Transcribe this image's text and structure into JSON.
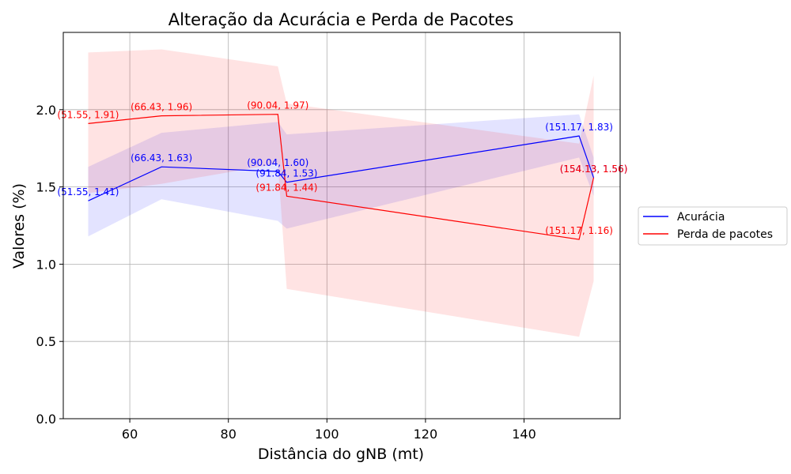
{
  "chart_data": {
    "type": "line",
    "title": "Alteração da Acurácia e Perda de Pacotes",
    "xlabel": "Distância do gNB (mt)",
    "ylabel": "Valores (%)",
    "xlim": [
      46.5,
      159.5
    ],
    "ylim": [
      0,
      2.5
    ],
    "xticks": [
      "60",
      "80",
      "100",
      "120",
      "140"
    ],
    "xtick_values": [
      60,
      80,
      100,
      120,
      140
    ],
    "yticks": [
      "0.0",
      "0.5",
      "1.0",
      "1.5",
      "2.0"
    ],
    "ytick_values": [
      0,
      0.5,
      1.0,
      1.5,
      2.0
    ],
    "grid": true,
    "legend_position": "outside-right",
    "series": [
      {
        "name": "Acurácia",
        "color": "#0000ff",
        "fill_color": "#0000ff",
        "x": [
          51.55,
          66.43,
          90.04,
          91.84,
          151.17,
          154.13
        ],
        "y": [
          1.41,
          1.63,
          1.6,
          1.53,
          1.83,
          1.56
        ],
        "band_upper": [
          1.63,
          1.85,
          1.92,
          1.84,
          1.97,
          1.69
        ],
        "band_lower": [
          1.18,
          1.42,
          1.28,
          1.23,
          1.69,
          1.44
        ],
        "labels": [
          "(51.55, 1.41)",
          "(66.43, 1.63)",
          "(90.04, 1.60)",
          "(91.84, 1.53)",
          "(151.17, 1.83)",
          "(154.13, 1.56)"
        ]
      },
      {
        "name": "Perda de pacotes",
        "color": "#ff0000",
        "fill_color": "#ff0000",
        "x": [
          51.55,
          66.43,
          90.04,
          91.84,
          151.17,
          154.13
        ],
        "y": [
          1.91,
          1.96,
          1.97,
          1.44,
          1.16,
          1.56
        ],
        "band_upper": [
          2.37,
          2.39,
          2.28,
          2.04,
          1.78,
          2.22
        ],
        "band_lower": [
          1.46,
          1.52,
          1.65,
          0.84,
          0.53,
          0.89
        ],
        "labels": [
          "(51.55, 1.91)",
          "(66.43, 1.96)",
          "(90.04, 1.97)",
          "(91.84, 1.44)",
          "(151.17, 1.16)",
          "(154.13, 1.56)"
        ]
      }
    ]
  }
}
